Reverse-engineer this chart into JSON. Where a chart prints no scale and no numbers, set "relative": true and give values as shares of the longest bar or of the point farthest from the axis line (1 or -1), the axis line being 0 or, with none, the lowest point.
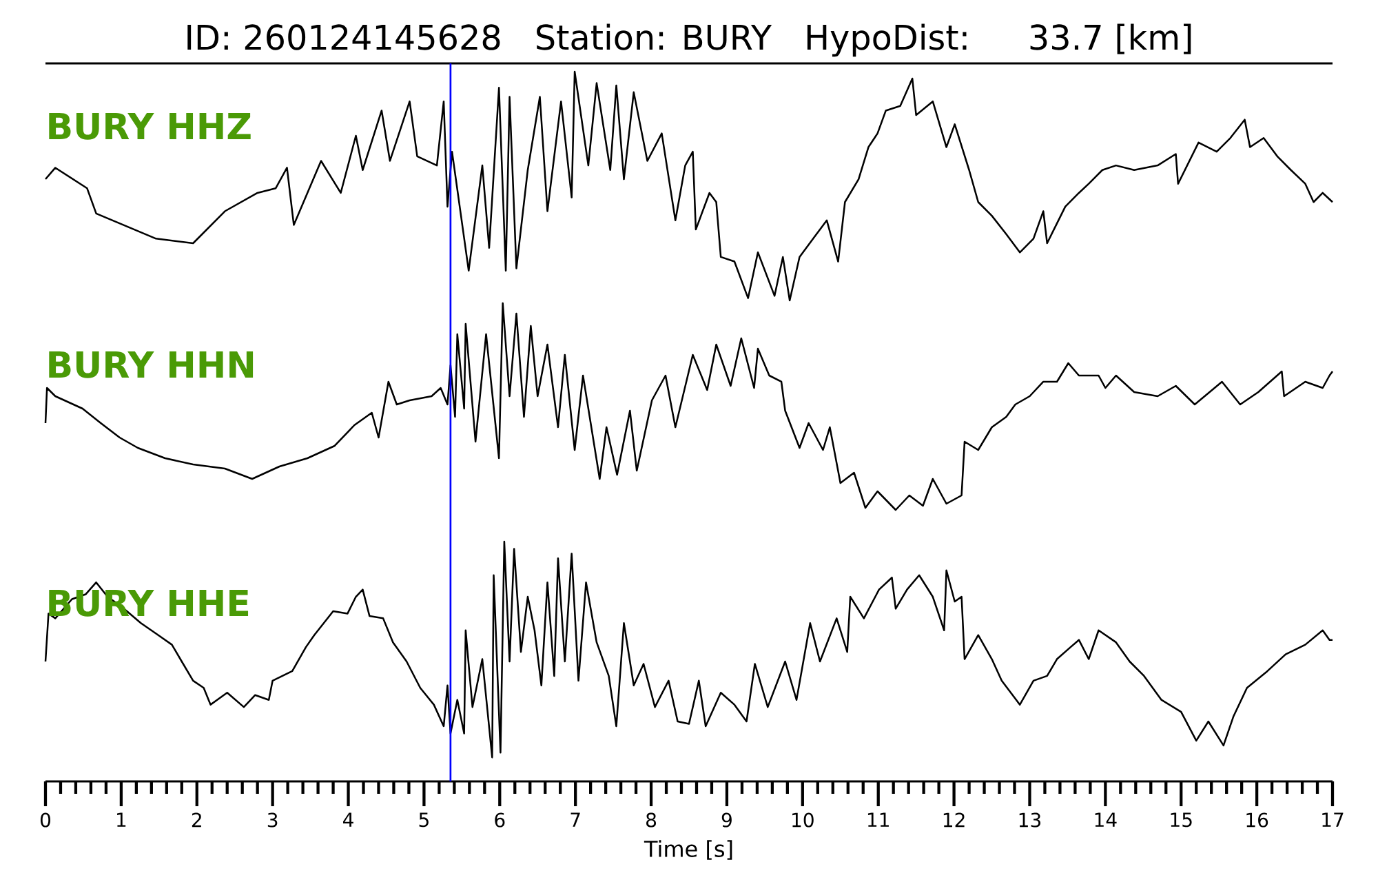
{
  "chart_data": [
    {
      "type": "line",
      "title": "ID: 260124145628   Station: BURY   HypoDist:    33.7 [km]",
      "relative": true,
      "xlim": [
        0,
        17
      ],
      "tick_labels": false,
      "x": [
        0,
        0.13,
        0.55,
        0.67,
        1.46,
        1.95,
        2.37,
        2.8,
        3.04,
        3.19,
        3.28,
        3.64,
        3.9,
        4.1,
        4.19,
        4.44,
        4.55,
        4.81,
        4.91,
        5.17,
        5.26,
        5.31,
        5.37,
        5.59,
        5.77,
        5.86,
        5.99,
        6.08,
        6.13,
        6.22,
        6.37,
        6.53,
        6.63,
        6.81,
        6.95,
        6.99,
        7.17,
        7.28,
        7.46,
        7.54,
        7.64,
        7.77,
        7.95,
        8.14,
        8.32,
        8.45,
        8.55,
        8.59,
        8.77,
        8.86,
        8.92,
        9.1,
        9.28,
        9.41,
        9.63,
        9.74,
        9.83,
        9.96,
        10.14,
        10.32,
        10.47,
        10.56,
        10.74,
        10.87,
        10.99,
        11.1,
        11.29,
        11.45,
        11.5,
        11.72,
        11.9,
        12.01,
        12.2,
        12.32,
        12.5,
        12.69,
        12.87,
        13.05,
        13.18,
        13.23,
        13.47,
        13.65,
        13.78,
        13.96,
        14.14,
        14.38,
        14.69,
        14.93,
        14.96,
        15.23,
        15.47,
        15.65,
        15.84,
        15.91,
        16.09,
        16.27,
        16.45,
        16.64,
        16.75,
        16.87,
        17
      ],
      "series": [
        {
          "name": "BURY HHZ",
          "color": "#000000",
          "values": [
            0.53,
            0.58,
            0.49,
            0.38,
            0.27,
            0.25,
            0.39,
            0.47,
            0.49,
            0.58,
            0.33,
            0.61,
            0.47,
            0.72,
            0.57,
            0.83,
            0.61,
            0.87,
            0.63,
            0.59,
            0.87,
            0.41,
            0.65,
            0.13,
            0.59,
            0.23,
            0.93,
            0.13,
            0.89,
            0.14,
            0.57,
            0.89,
            0.39,
            0.87,
            0.45,
            1,
            0.59,
            0.95,
            0.57,
            0.94,
            0.53,
            0.91,
            0.61,
            0.73,
            0.35,
            0.59,
            0.65,
            0.31,
            0.47,
            0.43,
            0.19,
            0.17,
            0.01,
            0.21,
            0.02,
            0.19,
            0,
            0.19,
            0.27,
            0.35,
            0.17,
            0.43,
            0.53,
            0.67,
            0.73,
            0.83,
            0.85,
            0.97,
            0.81,
            0.87,
            0.67,
            0.77,
            0.57,
            0.43,
            0.37,
            0.29,
            0.21,
            0.27,
            0.39,
            0.25,
            0.41,
            0.47,
            0.51,
            0.57,
            0.59,
            0.57,
            0.59,
            0.64,
            0.51,
            0.69,
            0.65,
            0.71,
            0.79,
            0.67,
            0.71,
            0.63,
            0.57,
            0.51,
            0.43,
            0.47,
            0.43
          ]
        }
      ],
      "ref_lines": [
        {
          "axis": "x",
          "value": 5.35,
          "color": "#0000ff"
        }
      ]
    },
    {
      "type": "line",
      "relative": true,
      "xlim": [
        0,
        17
      ],
      "tick_labels": false,
      "x": [
        0,
        0.02,
        0.13,
        0.49,
        0.73,
        0.98,
        1.22,
        1.58,
        1.95,
        2.37,
        2.73,
        3.09,
        3.46,
        3.82,
        4.08,
        4.31,
        4.4,
        4.53,
        4.64,
        4.81,
        5.1,
        5.22,
        5.31,
        5.35,
        5.41,
        5.44,
        5.53,
        5.55,
        5.68,
        5.82,
        5.99,
        6.04,
        6.13,
        6.22,
        6.32,
        6.41,
        6.5,
        6.63,
        6.77,
        6.86,
        6.99,
        7.1,
        7.32,
        7.41,
        7.55,
        7.72,
        7.81,
        8.01,
        8.19,
        8.32,
        8.55,
        8.74,
        8.86,
        9.05,
        9.19,
        9.36,
        9.41,
        9.56,
        9.72,
        9.77,
        9.96,
        10.08,
        10.27,
        10.36,
        10.5,
        10.68,
        10.83,
        10.99,
        11.23,
        11.41,
        11.59,
        11.72,
        11.9,
        12.1,
        12.14,
        12.32,
        12.5,
        12.69,
        12.81,
        13,
        13.18,
        13.36,
        13.51,
        13.65,
        13.91,
        14,
        14.14,
        14.38,
        14.69,
        14.93,
        15.18,
        15.54,
        15.78,
        16.02,
        16.33,
        16.36,
        16.64,
        16.87,
        16.96,
        17
      ],
      "series": [
        {
          "name": "BURY HHN",
          "color": "#000000",
          "values": [
            0.42,
            0.59,
            0.55,
            0.49,
            0.42,
            0.35,
            0.3,
            0.25,
            0.22,
            0.2,
            0.15,
            0.21,
            0.25,
            0.31,
            0.41,
            0.47,
            0.35,
            0.62,
            0.51,
            0.53,
            0.55,
            0.59,
            0.51,
            0.7,
            0.45,
            0.85,
            0.49,
            0.9,
            0.33,
            0.85,
            0.25,
            1,
            0.55,
            0.95,
            0.45,
            0.89,
            0.55,
            0.8,
            0.4,
            0.75,
            0.29,
            0.65,
            0.15,
            0.4,
            0.17,
            0.48,
            0.19,
            0.53,
            0.65,
            0.4,
            0.75,
            0.58,
            0.8,
            0.6,
            0.83,
            0.59,
            0.78,
            0.65,
            0.62,
            0.48,
            0.3,
            0.42,
            0.29,
            0.4,
            0.13,
            0.18,
            0.01,
            0.09,
            0,
            0.07,
            0.02,
            0.15,
            0.03,
            0.07,
            0.33,
            0.29,
            0.4,
            0.45,
            0.51,
            0.55,
            0.62,
            0.62,
            0.71,
            0.65,
            0.65,
            0.59,
            0.65,
            0.57,
            0.55,
            0.6,
            0.51,
            0.62,
            0.51,
            0.57,
            0.67,
            0.55,
            0.62,
            0.59,
            0.65,
            0.67
          ]
        }
      ],
      "ref_lines": [
        {
          "axis": "x",
          "value": 5.35,
          "color": "#0000ff"
        }
      ]
    },
    {
      "type": "line",
      "relative": true,
      "xlim": [
        0,
        17
      ],
      "tick_labels": "x",
      "xlabel": "Time [s]",
      "xticks": [
        0,
        {
          "value": 0.2,
          "label": null
        },
        {
          "value": 0.4,
          "label": null
        },
        {
          "value": 0.6,
          "label": null
        },
        {
          "value": 0.8,
          "label": null
        },
        1,
        {
          "value": 1.2,
          "label": null
        },
        {
          "value": 1.4,
          "label": null
        },
        {
          "value": 1.6,
          "label": null
        },
        {
          "value": 1.8,
          "label": null
        },
        2,
        {
          "value": 2.2,
          "label": null
        },
        {
          "value": 2.4,
          "label": null
        },
        {
          "value": 2.6,
          "label": null
        },
        {
          "value": 2.8,
          "label": null
        },
        3,
        {
          "value": 3.2,
          "label": null
        },
        {
          "value": 3.4,
          "label": null
        },
        {
          "value": 3.6,
          "label": null
        },
        {
          "value": 3.8,
          "label": null
        },
        4,
        {
          "value": 4.2,
          "label": null
        },
        {
          "value": 4.4,
          "label": null
        },
        {
          "value": 4.6,
          "label": null
        },
        {
          "value": 4.8,
          "label": null
        },
        5,
        {
          "value": 5.2,
          "label": null
        },
        {
          "value": 5.4,
          "label": null
        },
        {
          "value": 5.6,
          "label": null
        },
        {
          "value": 5.8,
          "label": null
        },
        6,
        {
          "value": 6.2,
          "label": null
        },
        {
          "value": 6.4,
          "label": null
        },
        {
          "value": 6.6,
          "label": null
        },
        {
          "value": 6.8,
          "label": null
        },
        7,
        {
          "value": 7.2,
          "label": null
        },
        {
          "value": 7.4,
          "label": null
        },
        {
          "value": 7.6,
          "label": null
        },
        {
          "value": 7.8,
          "label": null
        },
        8,
        {
          "value": 8.2,
          "label": null
        },
        {
          "value": 8.4,
          "label": null
        },
        {
          "value": 8.6,
          "label": null
        },
        {
          "value": 8.8,
          "label": null
        },
        9,
        {
          "value": 9.2,
          "label": null
        },
        {
          "value": 9.4,
          "label": null
        },
        {
          "value": 9.6,
          "label": null
        },
        {
          "value": 9.8,
          "label": null
        },
        10,
        {
          "value": 10.2,
          "label": null
        },
        {
          "value": 10.4,
          "label": null
        },
        {
          "value": 10.6,
          "label": null
        },
        {
          "value": 10.8,
          "label": null
        },
        11,
        {
          "value": 11.2,
          "label": null
        },
        {
          "value": 11.4,
          "label": null
        },
        {
          "value": 11.6,
          "label": null
        },
        {
          "value": 11.8,
          "label": null
        },
        12,
        {
          "value": 12.2,
          "label": null
        },
        {
          "value": 12.4,
          "label": null
        },
        {
          "value": 12.6,
          "label": null
        },
        {
          "value": 12.8,
          "label": null
        },
        13,
        {
          "value": 13.2,
          "label": null
        },
        {
          "value": 13.4,
          "label": null
        },
        {
          "value": 13.6,
          "label": null
        },
        {
          "value": 13.8,
          "label": null
        },
        14,
        {
          "value": 14.2,
          "label": null
        },
        {
          "value": 14.4,
          "label": null
        },
        {
          "value": 14.6,
          "label": null
        },
        {
          "value": 14.8,
          "label": null
        },
        15,
        {
          "value": 15.2,
          "label": null
        },
        {
          "value": 15.4,
          "label": null
        },
        {
          "value": 15.6,
          "label": null
        },
        {
          "value": 15.8,
          "label": null
        },
        16,
        {
          "value": 16.2,
          "label": null
        },
        {
          "value": 16.4,
          "label": null
        },
        {
          "value": 16.6,
          "label": null
        },
        {
          "value": 16.8,
          "label": null
        },
        17
      ],
      "x": [
        0,
        0.04,
        0.13,
        0.35,
        0.53,
        0.67,
        0.82,
        1,
        1.26,
        1.49,
        1.67,
        1.8,
        1.95,
        2.09,
        2.18,
        2.4,
        2.62,
        2.77,
        2.95,
        3,
        3.26,
        3.44,
        3.55,
        3.8,
        3.99,
        4.1,
        4.19,
        4.28,
        4.46,
        4.59,
        4.77,
        4.95,
        5.13,
        5.26,
        5.31,
        5.35,
        5.44,
        5.53,
        5.55,
        5.64,
        5.77,
        5.9,
        5.92,
        6.01,
        6.06,
        6.13,
        6.19,
        6.28,
        6.37,
        6.46,
        6.55,
        6.63,
        6.72,
        6.77,
        6.86,
        6.95,
        7.04,
        7.14,
        7.28,
        7.44,
        7.54,
        7.64,
        7.77,
        7.9,
        8.05,
        8.23,
        8.35,
        8.5,
        8.63,
        8.72,
        8.92,
        9.1,
        9.26,
        9.37,
        9.54,
        9.77,
        9.92,
        10.1,
        10.23,
        10.45,
        10.59,
        10.63,
        10.81,
        11.01,
        11.18,
        11.23,
        11.38,
        11.54,
        11.72,
        11.87,
        11.9,
        12.01,
        12.1,
        12.14,
        12.32,
        12.5,
        12.63,
        12.87,
        13.05,
        13.23,
        13.36,
        13.54,
        13.65,
        13.78,
        13.91,
        14.14,
        14.32,
        14.51,
        14.74,
        15,
        15.2,
        15.36,
        15.56,
        15.69,
        15.87,
        16.14,
        16.38,
        16.64,
        16.87,
        16.96,
        17
      ],
      "series": [
        {
          "name": "BURY HHE",
          "color": "#000000",
          "values": [
            0.5,
            0.7,
            0.68,
            0.76,
            0.78,
            0.83,
            0.77,
            0.73,
            0.66,
            0.61,
            0.57,
            0.5,
            0.42,
            0.39,
            0.32,
            0.37,
            0.31,
            0.36,
            0.34,
            0.42,
            0.46,
            0.56,
            0.61,
            0.71,
            0.7,
            0.77,
            0.8,
            0.69,
            0.68,
            0.58,
            0.5,
            0.39,
            0.32,
            0.23,
            0.4,
            0.2,
            0.34,
            0.2,
            0.63,
            0.31,
            0.51,
            0.1,
            0.86,
            0.12,
            1,
            0.5,
            0.97,
            0.54,
            0.77,
            0.63,
            0.4,
            0.83,
            0.44,
            0.93,
            0.5,
            0.95,
            0.42,
            0.83,
            0.58,
            0.44,
            0.23,
            0.66,
            0.4,
            0.49,
            0.31,
            0.42,
            0.25,
            0.24,
            0.42,
            0.23,
            0.37,
            0.32,
            0.25,
            0.49,
            0.31,
            0.5,
            0.34,
            0.66,
            0.5,
            0.68,
            0.54,
            0.77,
            0.68,
            0.8,
            0.85,
            0.72,
            0.8,
            0.86,
            0.77,
            0.63,
            0.88,
            0.75,
            0.77,
            0.51,
            0.61,
            0.51,
            0.42,
            0.32,
            0.42,
            0.44,
            0.51,
            0.56,
            0.59,
            0.51,
            0.63,
            0.58,
            0.5,
            0.44,
            0.34,
            0.29,
            0.17,
            0.25,
            0.15,
            0.27,
            0.39,
            0.46,
            0.53,
            0.57,
            0.63,
            0.59,
            0.59
          ]
        }
      ],
      "ref_lines": [
        {
          "axis": "x",
          "value": 5.35,
          "color": "#0000ff"
        }
      ]
    }
  ]
}
